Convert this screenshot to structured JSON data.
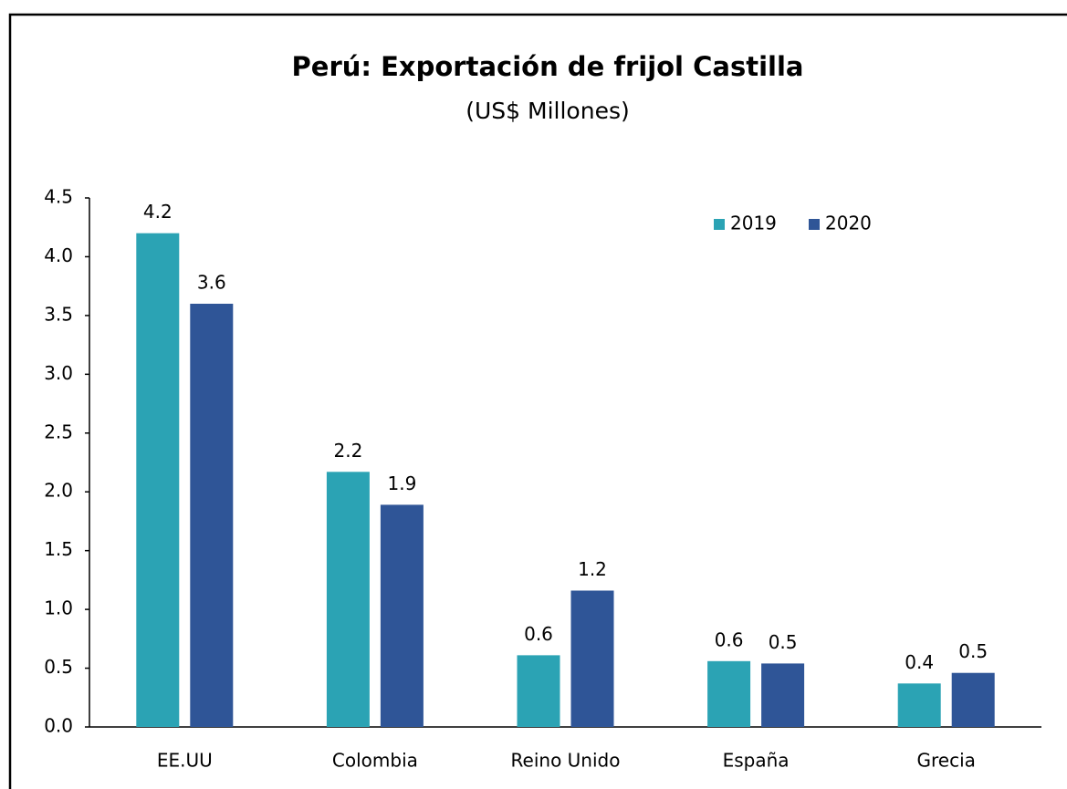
{
  "chart_data": {
    "type": "bar",
    "title": "Perú: Exportación de frijol Castilla",
    "subtitle": "(US$ Millones)",
    "categories": [
      "EE.UU",
      "Colombia",
      "Reino Unido",
      "España",
      "Grecia"
    ],
    "series": [
      {
        "name": "2019",
        "color": "#2ba3b4",
        "values": [
          4.2,
          2.17,
          0.61,
          0.56,
          0.37
        ],
        "value_labels": [
          "4.2",
          "2.2",
          "0.6",
          "0.6",
          "0.4"
        ]
      },
      {
        "name": "2020",
        "color": "#2f5597",
        "values": [
          3.6,
          1.89,
          1.16,
          0.54,
          0.46
        ],
        "value_labels": [
          "3.6",
          "1.9",
          "1.2",
          "0.5",
          "0.5"
        ]
      }
    ],
    "ylim": [
      0,
      4.5
    ],
    "yticks": [
      {
        "value": 0,
        "label": "0.0"
      },
      0.5,
      {
        "value": 1,
        "label": "1.0"
      },
      1.5,
      {
        "value": 2,
        "label": "2.0"
      },
      2.5,
      {
        "value": 3,
        "label": "3.0"
      },
      3.5,
      {
        "value": 4,
        "label": "4.0"
      },
      4.5
    ],
    "legend": "top-right"
  }
}
